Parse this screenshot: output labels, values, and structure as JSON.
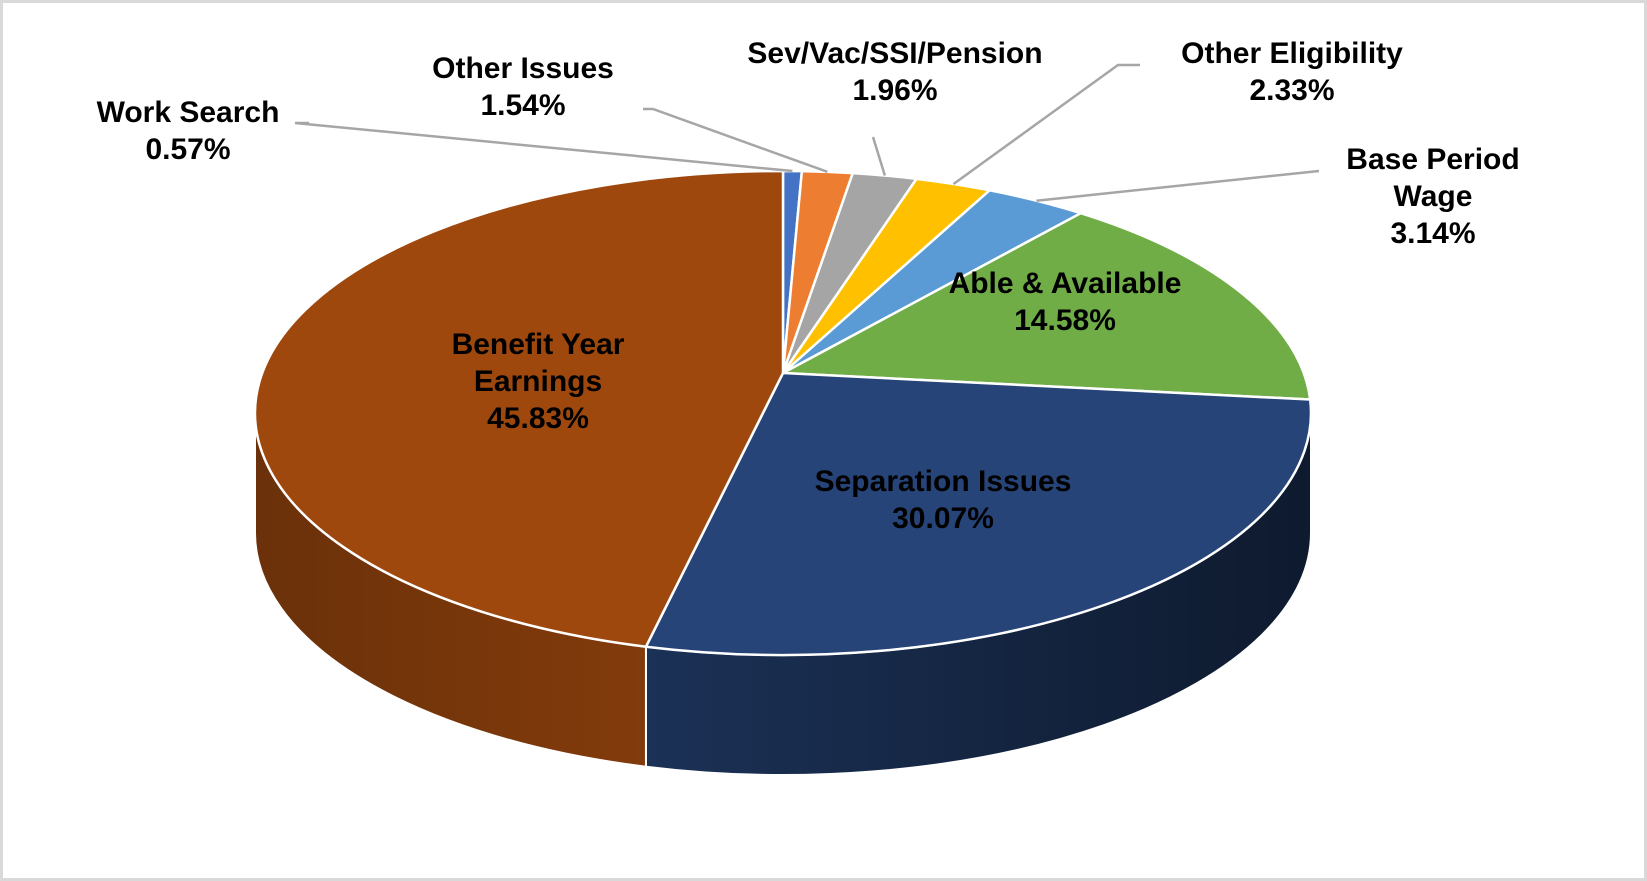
{
  "chart_data": {
    "type": "pie",
    "style": "3d",
    "title": "",
    "start": "top, clockwise",
    "slices": [
      {
        "label": "Work Search",
        "value": 0.57,
        "display": "0.57%",
        "color": "#4472C4"
      },
      {
        "label": "Other Issues",
        "value": 1.54,
        "display": "1.54%",
        "color": "#ED7D31"
      },
      {
        "label": "Sev/Vac/SSI/Pension",
        "value": 1.96,
        "display": "1.96%",
        "color": "#A5A5A5"
      },
      {
        "label": "Other Eligibility",
        "value": 2.33,
        "display": "2.33%",
        "color": "#FFC000"
      },
      {
        "label": "Base Period Wage",
        "value": 3.14,
        "display": "3.14%",
        "color": "#5B9BD5"
      },
      {
        "label": "Able & Available",
        "value": 14.58,
        "display": "14.58%",
        "color": "#70AD47"
      },
      {
        "label": "Separation Issues",
        "value": 30.07,
        "display": "30.07%",
        "color": "#264478"
      },
      {
        "label": "Benefit Year Earnings",
        "value": 45.83,
        "display": "45.83%",
        "color": "#9E480E"
      }
    ],
    "label_lines": {
      "base_period_1": "Base Period",
      "base_period_2": "Wage",
      "bye_1": "Benefit Year",
      "bye_2": "Earnings"
    }
  }
}
